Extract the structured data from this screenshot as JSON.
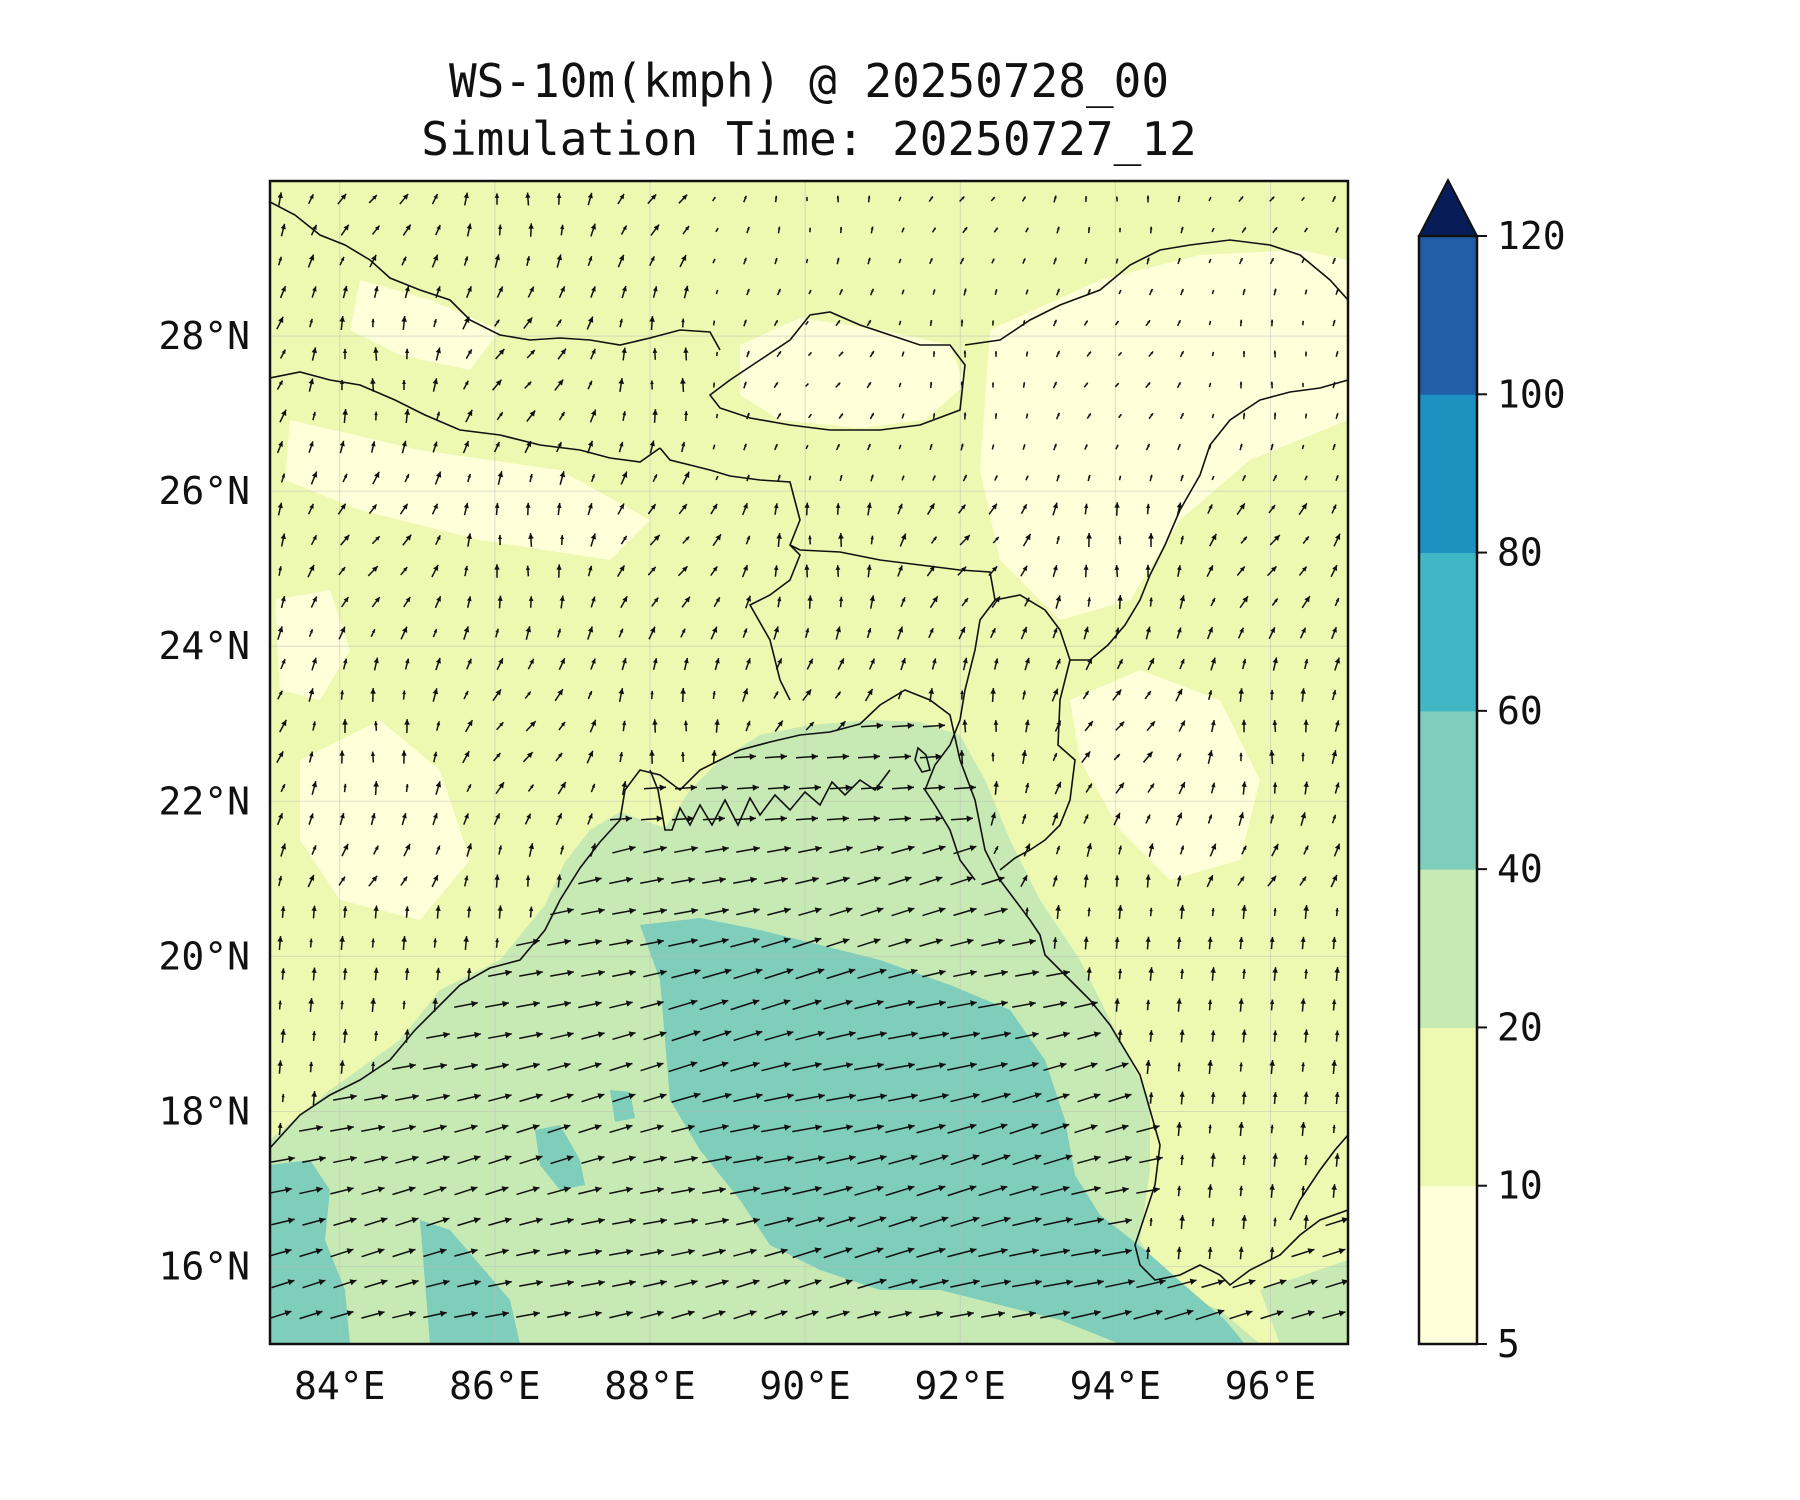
{
  "title": {
    "line1": "WS-10m(kmph) @ 20250728_00",
    "line2": "Simulation Time: 20250727_12"
  },
  "map": {
    "lon_range": [
      83.1,
      97.0
    ],
    "lat_range": [
      15.0,
      30.0
    ],
    "lon_ticks": [
      "84°E",
      "86°E",
      "88°E",
      "90°E",
      "92°E",
      "94°E",
      "96°E"
    ],
    "lon_tick_values": [
      84,
      86,
      88,
      90,
      92,
      94,
      96
    ],
    "lat_ticks": [
      "16°N",
      "18°N",
      "20°N",
      "22°N",
      "24°N",
      "26°N",
      "28°N"
    ],
    "lat_tick_values": [
      16,
      18,
      20,
      22,
      24,
      26,
      28
    ],
    "gridlines": true,
    "field": "10 m wind speed (kmph) with wind vectors",
    "wind_regime": "strong west-southwesterly flow over the Bay of Bengal (20–40 kmph, locally 40–60 kmph), weak southerly flow over land"
  },
  "colorbar": {
    "levels": [
      "5",
      "10",
      "20",
      "40",
      "60",
      "80",
      "100",
      "120"
    ],
    "level_values": [
      5,
      10,
      20,
      40,
      60,
      80,
      100,
      120
    ],
    "colors": [
      "#ffffd9",
      "#edf8b1",
      "#c7e9b4",
      "#7fcdbb",
      "#41b6c4",
      "#1d91c0",
      "#225ea8",
      "#0c2c84"
    ],
    "extend_color": "#081d58",
    "extend": "max"
  }
}
